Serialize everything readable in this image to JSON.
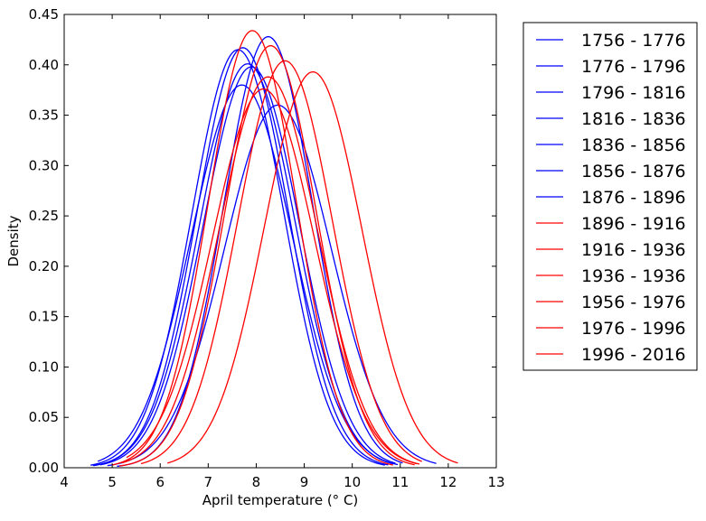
{
  "chart_data": {
    "type": "line",
    "title": "",
    "xlabel": "April temperature (° C)",
    "ylabel": "Density",
    "xlim": [
      4,
      13
    ],
    "ylim": [
      0,
      0.45
    ],
    "x_ticks": [
      4,
      5,
      6,
      7,
      8,
      9,
      10,
      11,
      12,
      13
    ],
    "y_ticks": [
      0.0,
      0.05,
      0.1,
      0.15,
      0.2,
      0.25,
      0.3,
      0.35,
      0.4,
      0.45
    ],
    "y_tick_labels": [
      "0.00",
      "0.05",
      "0.10",
      "0.15",
      "0.20",
      "0.25",
      "0.30",
      "0.35",
      "0.40",
      "0.45"
    ],
    "grid": false,
    "legend_position": "outside-right",
    "colors": {
      "early": "#0000ff",
      "late": "#ff0000"
    },
    "series": [
      {
        "name": "1756 - 1776",
        "color": "#0000ff",
        "mean": 7.62,
        "peak": 0.415,
        "x_min": 4.55,
        "x_max": 10.68
      },
      {
        "name": "1776 - 1796",
        "color": "#0000ff",
        "mean": 7.72,
        "peak": 0.417,
        "x_min": 4.62,
        "x_max": 10.75
      },
      {
        "name": "1796 - 1816",
        "color": "#0000ff",
        "mean": 7.82,
        "peak": 0.401,
        "x_min": 4.6,
        "x_max": 10.85
      },
      {
        "name": "1816 - 1836",
        "color": "#0000ff",
        "mean": 7.7,
        "peak": 0.38,
        "x_min": 4.7,
        "x_max": 10.95
      },
      {
        "name": "1836 - 1856",
        "color": "#0000ff",
        "mean": 8.25,
        "peak": 0.428,
        "x_min": 5.1,
        "x_max": 11.05
      },
      {
        "name": "1856 - 1876",
        "color": "#0000ff",
        "mean": 8.45,
        "peak": 0.36,
        "x_min": 4.9,
        "x_max": 11.75
      },
      {
        "name": "1876 - 1896",
        "color": "#0000ff",
        "mean": 7.9,
        "peak": 0.398,
        "x_min": 4.75,
        "x_max": 10.9
      },
      {
        "name": "1896 - 1916",
        "color": "#ff0000",
        "mean": 7.92,
        "peak": 0.434,
        "x_min": 5.0,
        "x_max": 10.85
      },
      {
        "name": "1916 - 1936",
        "color": "#ff0000",
        "mean": 8.3,
        "peak": 0.419,
        "x_min": 5.15,
        "x_max": 11.3
      },
      {
        "name": "1936 - 1936",
        "color": "#ff0000",
        "mean": 8.25,
        "peak": 0.388,
        "x_min": 5.2,
        "x_max": 11.4
      },
      {
        "name": "1956 - 1976",
        "color": "#ff0000",
        "mean": 8.15,
        "peak": 0.376,
        "x_min": 5.3,
        "x_max": 11.35
      },
      {
        "name": "1976 - 1996",
        "color": "#ff0000",
        "mean": 8.6,
        "peak": 0.404,
        "x_min": 5.6,
        "x_max": 11.45
      },
      {
        "name": "1996 - 2016",
        "color": "#ff0000",
        "mean": 9.18,
        "peak": 0.393,
        "x_min": 6.15,
        "x_max": 12.2
      }
    ]
  }
}
